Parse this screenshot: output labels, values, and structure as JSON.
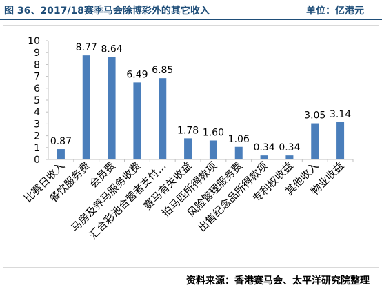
{
  "header": {
    "figure_title": "图 36、2017/18赛季马会除博彩外的其它收入",
    "unit_label": "单位：亿港元"
  },
  "footer": {
    "source": "资料来源：香港赛马会、太平洋研究院整理"
  },
  "colors": {
    "bar": "#4a7ebb",
    "title": "#1f4e79",
    "axis": "#bfbfbf"
  },
  "chart_data": {
    "type": "bar",
    "title": "",
    "xlabel": "",
    "ylabel": "",
    "ylim": [
      0,
      10
    ],
    "yticks": [
      0,
      1,
      2,
      3,
      4,
      5,
      6,
      7,
      8,
      9,
      10
    ],
    "grid": false,
    "categories": [
      "比赛日收入",
      "餐饮服务费",
      "会员费",
      "马房及养马服务收费",
      "汇合彩池合营者支付…",
      "赛马有关收益",
      "拍马匹所得款项",
      "风险管理服务费",
      "出售纪念品所得款项",
      "专利权收益",
      "其他收入",
      "物业收益"
    ],
    "values": [
      0.87,
      8.77,
      8.64,
      6.49,
      6.85,
      1.78,
      1.6,
      1.06,
      0.34,
      0.34,
      3.05,
      3.14
    ],
    "data_labels": [
      "0.87",
      "8.77",
      "8.64",
      "6.49",
      "6.85",
      "1.78",
      "1.60",
      "1.06",
      "0.34",
      "0.34",
      "3.05",
      "3.14"
    ]
  }
}
